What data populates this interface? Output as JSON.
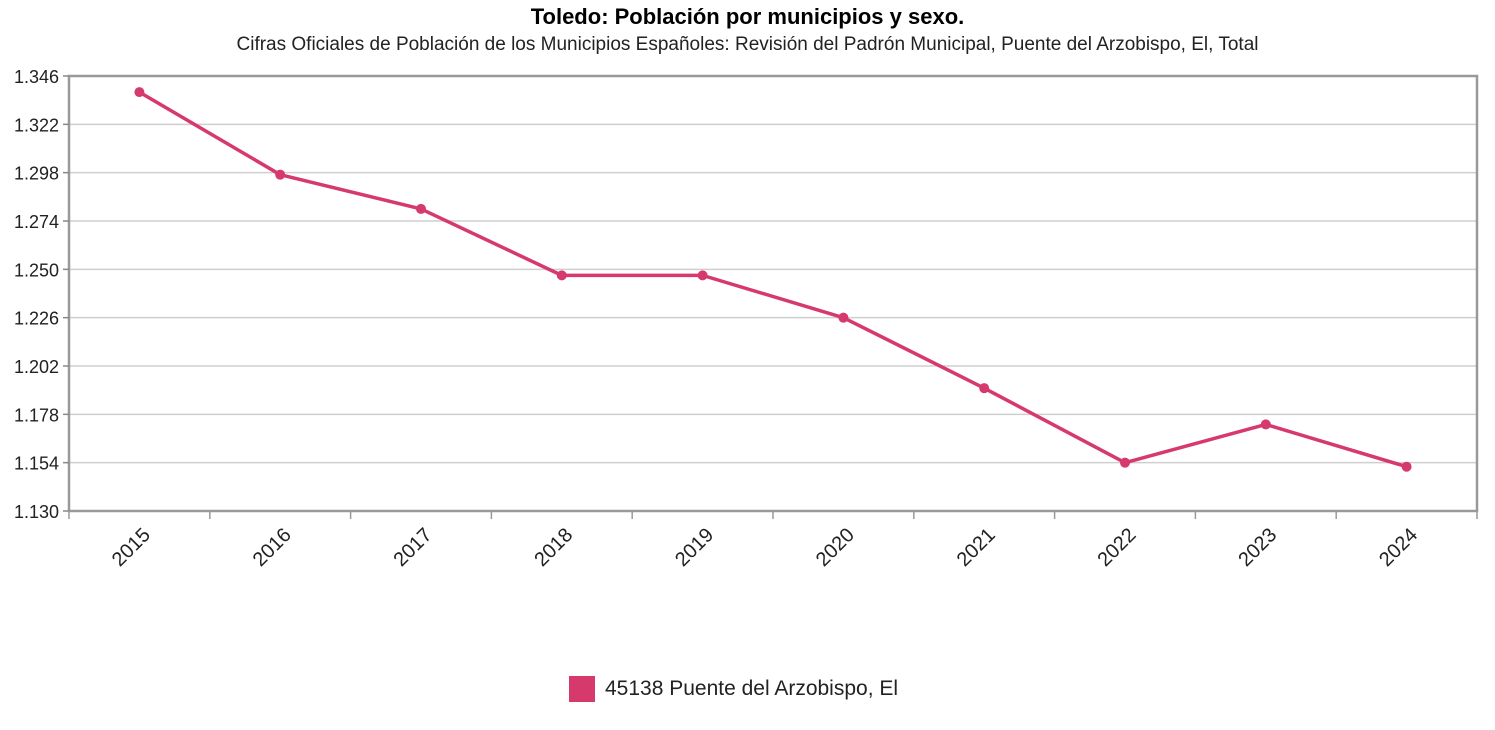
{
  "chart_data": {
    "type": "line",
    "title": "Toledo: Población por municipios y sexo.",
    "subtitle": "Cifras Oficiales de Población de los Municipios Españoles: Revisión del Padrón Municipal, Puente del Arzobispo, El, Total",
    "categories": [
      "2015",
      "2016",
      "2017",
      "2018",
      "2019",
      "2020",
      "2021",
      "2022",
      "2023",
      "2024"
    ],
    "series": [
      {
        "name": "45138 Puente del Arzobispo, El",
        "values": [
          1338,
          1297,
          1280,
          1247,
          1247,
          1226,
          1191,
          1154,
          1173,
          1152
        ],
        "color": "#d63a6c"
      }
    ],
    "ylim": [
      1130,
      1346
    ],
    "yticks": [
      "1.130",
      "1.154",
      "1.178",
      "1.202",
      "1.226",
      "1.250",
      "1.274",
      "1.298",
      "1.322",
      "1.346"
    ],
    "grid": true,
    "legend_position": "bottom"
  }
}
